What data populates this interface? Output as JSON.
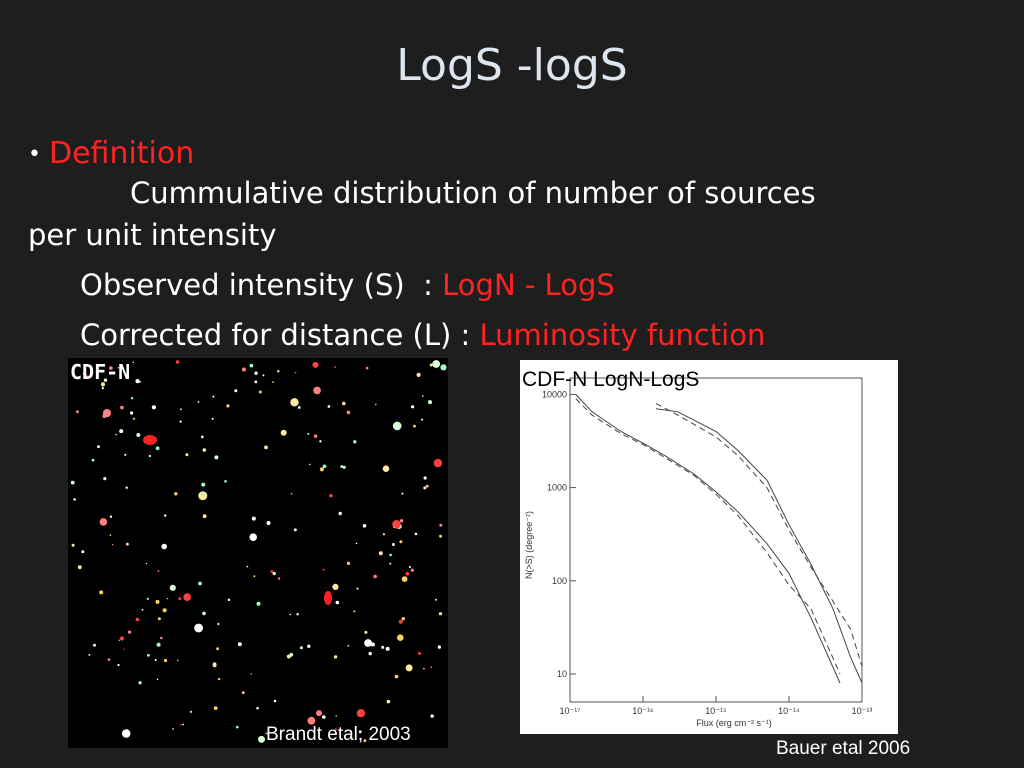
{
  "slide": {
    "title": "LogS -logS",
    "bullet_symbol": "•",
    "bullet_label": "Definition",
    "definition_line1": "Cummulative distribution of number of sources",
    "definition_line2": "per unit intensity",
    "observed_text": "Observed intensity (S)  : ",
    "observed_highlight": "LogN - LogS",
    "corrected_text": "Corrected for distance (L) : ",
    "corrected_highlight": "Luminosity function",
    "highlight_color": "#ff2222"
  },
  "image": {
    "label": "CDF-N",
    "credit": "Brandt etal, 2003"
  },
  "plot": {
    "label": "CDF-N  LogN-LogS",
    "credit": "Bauer etal 2006"
  },
  "chart_data": {
    "type": "line",
    "xlabel": "Flux (erg cm⁻² s⁻¹)",
    "ylabel": "N(>S) (degree⁻²)",
    "xscale": "log",
    "yscale": "log",
    "xlim": [
      1e-17,
      1e-13
    ],
    "ylim": [
      5,
      15000
    ],
    "xticks": [
      "10⁻¹⁷",
      "10⁻¹⁶",
      "10⁻¹⁵",
      "10⁻¹⁴",
      "10⁻¹³"
    ],
    "yticks": [
      "10",
      "100",
      "1000",
      "10000"
    ],
    "series": [
      {
        "style": "solid",
        "x": [
          1.2e-17,
          2e-17,
          5e-17,
          1e-16,
          2e-16,
          5e-16,
          1e-15,
          2e-15,
          5e-15,
          1e-14,
          2e-14,
          5e-14
        ],
        "y": [
          10000,
          6500,
          4000,
          3000,
          2200,
          1400,
          900,
          550,
          250,
          120,
          40,
          8
        ]
      },
      {
        "style": "dashed",
        "x": [
          1.2e-17,
          2e-17,
          5e-17,
          1e-16,
          2e-16,
          5e-16,
          1e-15,
          2e-15,
          5e-15,
          1e-14,
          2e-14,
          5e-14
        ],
        "y": [
          9000,
          6000,
          3800,
          2900,
          2100,
          1350,
          850,
          500,
          200,
          90,
          50,
          10
        ]
      },
      {
        "style": "solid",
        "x": [
          1.5e-16,
          3e-16,
          1e-15,
          2e-15,
          5e-15,
          1e-14,
          2e-14,
          4e-14,
          7e-14,
          1e-13
        ],
        "y": [
          7000,
          6500,
          4000,
          2500,
          1200,
          400,
          150,
          50,
          15,
          8
        ]
      },
      {
        "style": "dashed",
        "x": [
          1.5e-16,
          3e-16,
          1e-15,
          2e-15,
          5e-15,
          1e-14,
          2e-14,
          4e-14,
          7e-14,
          1e-13
        ],
        "y": [
          8000,
          6000,
          3500,
          2200,
          1000,
          350,
          140,
          60,
          30,
          12
        ]
      }
    ]
  }
}
